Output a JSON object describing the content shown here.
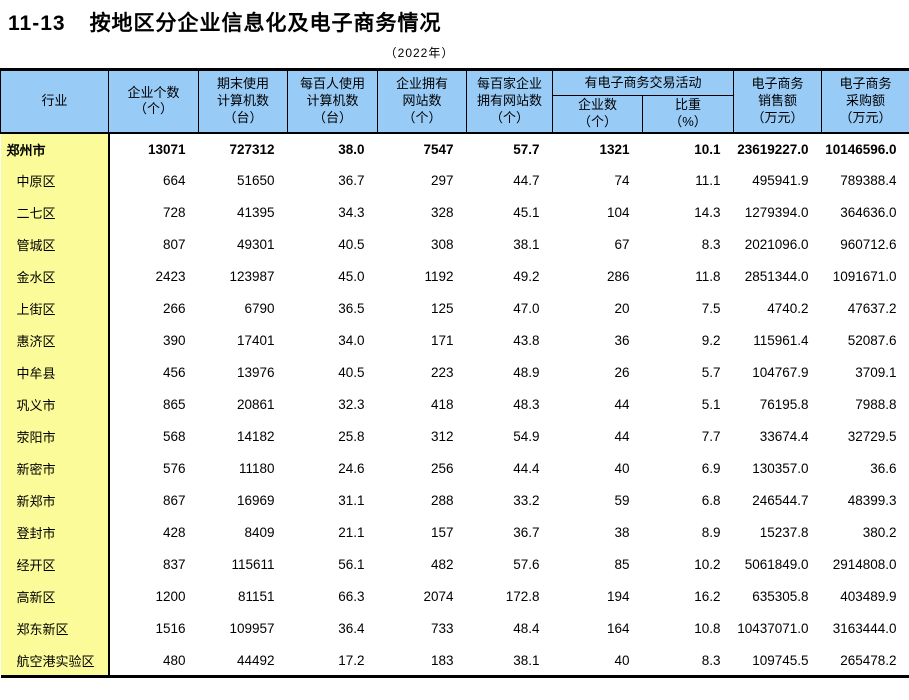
{
  "page": {
    "title_number": "11-13",
    "title": "按地区分企业信息化及电子商务情况",
    "subtitle": "（2022年）"
  },
  "colors": {
    "header_bg": "#99CBF7",
    "region_col_bg": "#FBFB99",
    "border": "#000000"
  },
  "table": {
    "headers": {
      "industry": "行业",
      "enterprise_count": "企业个数\n（个）",
      "computers_end_of_period": "期末使用\n计算机数\n（台）",
      "computers_per_100": "每百人使用\n计算机数\n（台）",
      "websites": "企业拥有\n网站数\n（个）",
      "websites_per_100": "每百家企业\n拥有网站数\n（个）",
      "ecommerce_group": "有电子商务交易活动",
      "ecommerce_enterprises": "企业数\n（个）",
      "ecommerce_share": "比重\n（%）",
      "ecommerce_sales": "电子商务\n销售额\n（万元）",
      "ecommerce_purchases": "电子商务\n采购额\n（万元）"
    },
    "rows": [
      {
        "region": "郑州市",
        "emphasis": true,
        "values": [
          "13071",
          "727312",
          "38.0",
          "7547",
          "57.7",
          "1321",
          "10.1",
          "23619227.0",
          "10146596.0"
        ]
      },
      {
        "region": "中原区",
        "emphasis": false,
        "values": [
          "664",
          "51650",
          "36.7",
          "297",
          "44.7",
          "74",
          "11.1",
          "495941.9",
          "789388.4"
        ]
      },
      {
        "region": "二七区",
        "emphasis": false,
        "values": [
          "728",
          "41395",
          "34.3",
          "328",
          "45.1",
          "104",
          "14.3",
          "1279394.0",
          "364636.0"
        ]
      },
      {
        "region": "管城区",
        "emphasis": false,
        "values": [
          "807",
          "49301",
          "40.5",
          "308",
          "38.1",
          "67",
          "8.3",
          "2021096.0",
          "960712.6"
        ]
      },
      {
        "region": "金水区",
        "emphasis": false,
        "values": [
          "2423",
          "123987",
          "45.0",
          "1192",
          "49.2",
          "286",
          "11.8",
          "2851344.0",
          "1091671.0"
        ]
      },
      {
        "region": "上街区",
        "emphasis": false,
        "values": [
          "266",
          "6790",
          "36.5",
          "125",
          "47.0",
          "20",
          "7.5",
          "4740.2",
          "47637.2"
        ]
      },
      {
        "region": "惠济区",
        "emphasis": false,
        "values": [
          "390",
          "17401",
          "34.0",
          "171",
          "43.8",
          "36",
          "9.2",
          "115961.4",
          "52087.6"
        ]
      },
      {
        "region": "中牟县",
        "emphasis": false,
        "values": [
          "456",
          "13976",
          "40.5",
          "223",
          "48.9",
          "26",
          "5.7",
          "104767.9",
          "3709.1"
        ]
      },
      {
        "region": "巩义市",
        "emphasis": false,
        "values": [
          "865",
          "20861",
          "32.3",
          "418",
          "48.3",
          "44",
          "5.1",
          "76195.8",
          "7988.8"
        ]
      },
      {
        "region": "荥阳市",
        "emphasis": false,
        "values": [
          "568",
          "14182",
          "25.8",
          "312",
          "54.9",
          "44",
          "7.7",
          "33674.4",
          "32729.5"
        ]
      },
      {
        "region": "新密市",
        "emphasis": false,
        "values": [
          "576",
          "11180",
          "24.6",
          "256",
          "44.4",
          "40",
          "6.9",
          "130357.0",
          "36.6"
        ]
      },
      {
        "region": "新郑市",
        "emphasis": false,
        "values": [
          "867",
          "16969",
          "31.1",
          "288",
          "33.2",
          "59",
          "6.8",
          "246544.7",
          "48399.3"
        ]
      },
      {
        "region": "登封市",
        "emphasis": false,
        "values": [
          "428",
          "8409",
          "21.1",
          "157",
          "36.7",
          "38",
          "8.9",
          "15237.8",
          "380.2"
        ]
      },
      {
        "region": "经开区",
        "emphasis": false,
        "values": [
          "837",
          "115611",
          "56.1",
          "482",
          "57.6",
          "85",
          "10.2",
          "5061849.0",
          "2914808.0"
        ]
      },
      {
        "region": "高新区",
        "emphasis": false,
        "values": [
          "1200",
          "81151",
          "66.3",
          "2074",
          "172.8",
          "194",
          "16.2",
          "635305.8",
          "403489.9"
        ]
      },
      {
        "region": "郑东新区",
        "emphasis": false,
        "values": [
          "1516",
          "109957",
          "36.4",
          "733",
          "48.4",
          "164",
          "10.8",
          "10437071.0",
          "3163444.0"
        ]
      },
      {
        "region": "航空港实验区",
        "emphasis": false,
        "values": [
          "480",
          "44492",
          "17.2",
          "183",
          "38.1",
          "40",
          "8.3",
          "109745.5",
          "265478.2"
        ]
      }
    ]
  }
}
